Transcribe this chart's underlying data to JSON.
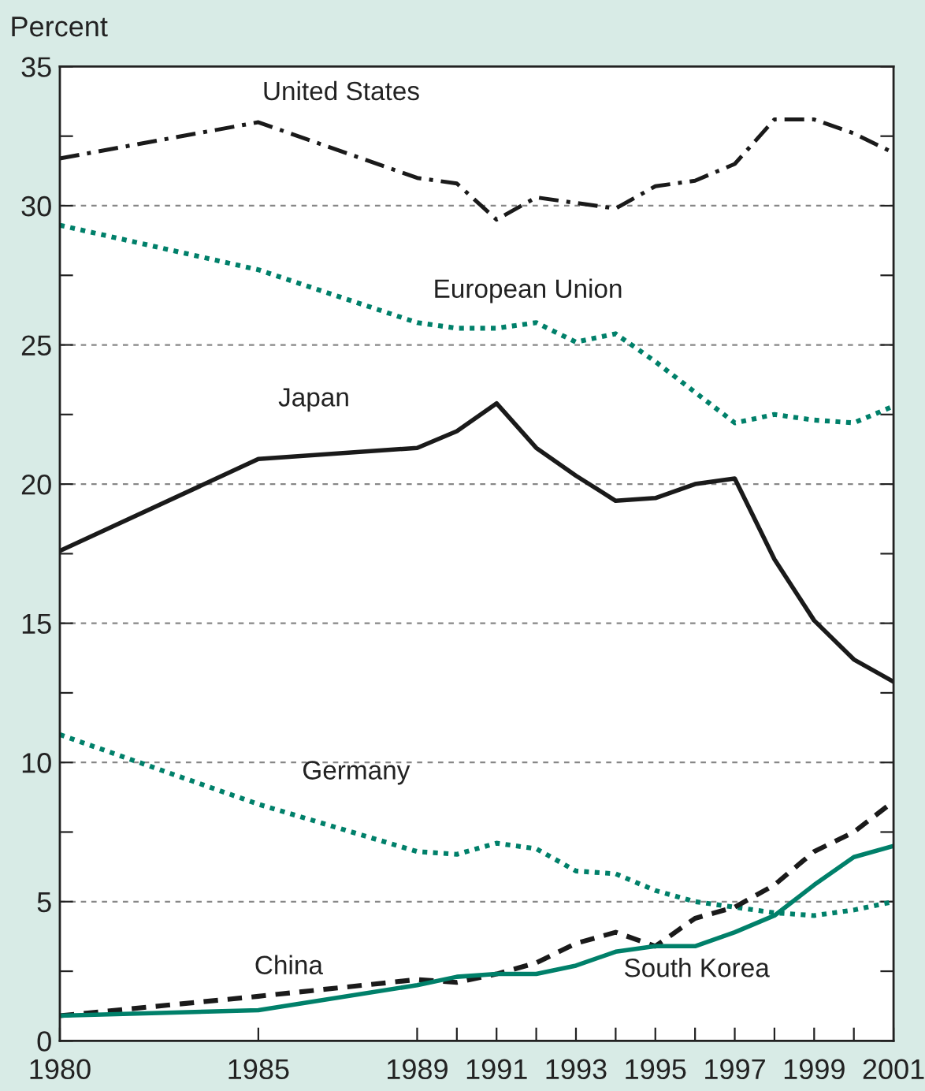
{
  "chart_data": {
    "type": "line",
    "ylabel": "Percent",
    "x": [
      1980,
      1985,
      1989,
      1990,
      1991,
      1992,
      1993,
      1994,
      1995,
      1996,
      1997,
      1998,
      1999,
      2000,
      2001
    ],
    "xlim": [
      1980,
      2001
    ],
    "xticks": [
      1980,
      1985,
      1989,
      {
        "value": 1990,
        "label": null
      },
      1991,
      {
        "value": 1992,
        "label": null
      },
      1993,
      {
        "value": 1994,
        "label": null
      },
      1995,
      {
        "value": 1996,
        "label": null
      },
      1997,
      {
        "value": 1998,
        "label": null
      },
      1999,
      {
        "value": 2000,
        "label": null
      },
      2001
    ],
    "ylim": [
      0,
      35
    ],
    "yticks": [
      0,
      {
        "value": 2.5,
        "label": null
      },
      5,
      {
        "value": 7.5,
        "label": null
      },
      10,
      {
        "value": 12.5,
        "label": null
      },
      15,
      {
        "value": 17.5,
        "label": null
      },
      20,
      {
        "value": 22.5,
        "label": null
      },
      25,
      {
        "value": 27.5,
        "label": null
      },
      30,
      {
        "value": 32.5,
        "label": null
      },
      35
    ],
    "grid": "y",
    "legend": false,
    "series": [
      {
        "name": "United States",
        "color": "#1a1a1a",
        "line_style": "dashdot",
        "values": [
          31.7,
          33.0,
          31.0,
          30.8,
          29.5,
          30.3,
          30.1,
          29.9,
          30.7,
          30.9,
          31.5,
          33.1,
          33.1,
          32.6,
          31.9
        ]
      },
      {
        "name": "European Union",
        "color": "#00806a",
        "line_style": "dotted",
        "values": [
          29.3,
          27.7,
          25.8,
          25.6,
          25.6,
          25.8,
          25.1,
          25.4,
          24.4,
          23.3,
          22.2,
          22.5,
          22.3,
          22.2,
          22.8
        ]
      },
      {
        "name": "Japan",
        "color": "#1a1a1a",
        "line_style": "solid",
        "values": [
          17.6,
          20.9,
          21.3,
          21.9,
          22.9,
          21.3,
          20.3,
          19.4,
          19.5,
          20.0,
          20.2,
          17.3,
          15.1,
          13.7,
          12.9
        ]
      },
      {
        "name": "Germany",
        "color": "#00806a",
        "line_style": "dotted",
        "values": [
          11.0,
          8.5,
          6.8,
          6.7,
          7.1,
          6.9,
          6.1,
          6.0,
          5.4,
          5.0,
          4.8,
          4.6,
          4.5,
          4.7,
          5.0
        ]
      },
      {
        "name": "China",
        "color": "#1a1a1a",
        "line_style": "dashed",
        "values": [
          0.9,
          1.6,
          2.2,
          2.1,
          2.4,
          2.8,
          3.5,
          3.9,
          3.4,
          4.4,
          4.8,
          5.6,
          6.8,
          7.5,
          8.6
        ]
      },
      {
        "name": "South Korea",
        "color": "#00806a",
        "line_style": "solid",
        "values": [
          0.9,
          1.1,
          2.0,
          2.3,
          2.4,
          2.4,
          2.7,
          3.2,
          3.4,
          3.4,
          3.9,
          4.5,
          5.6,
          6.6,
          7.0
        ]
      }
    ]
  }
}
